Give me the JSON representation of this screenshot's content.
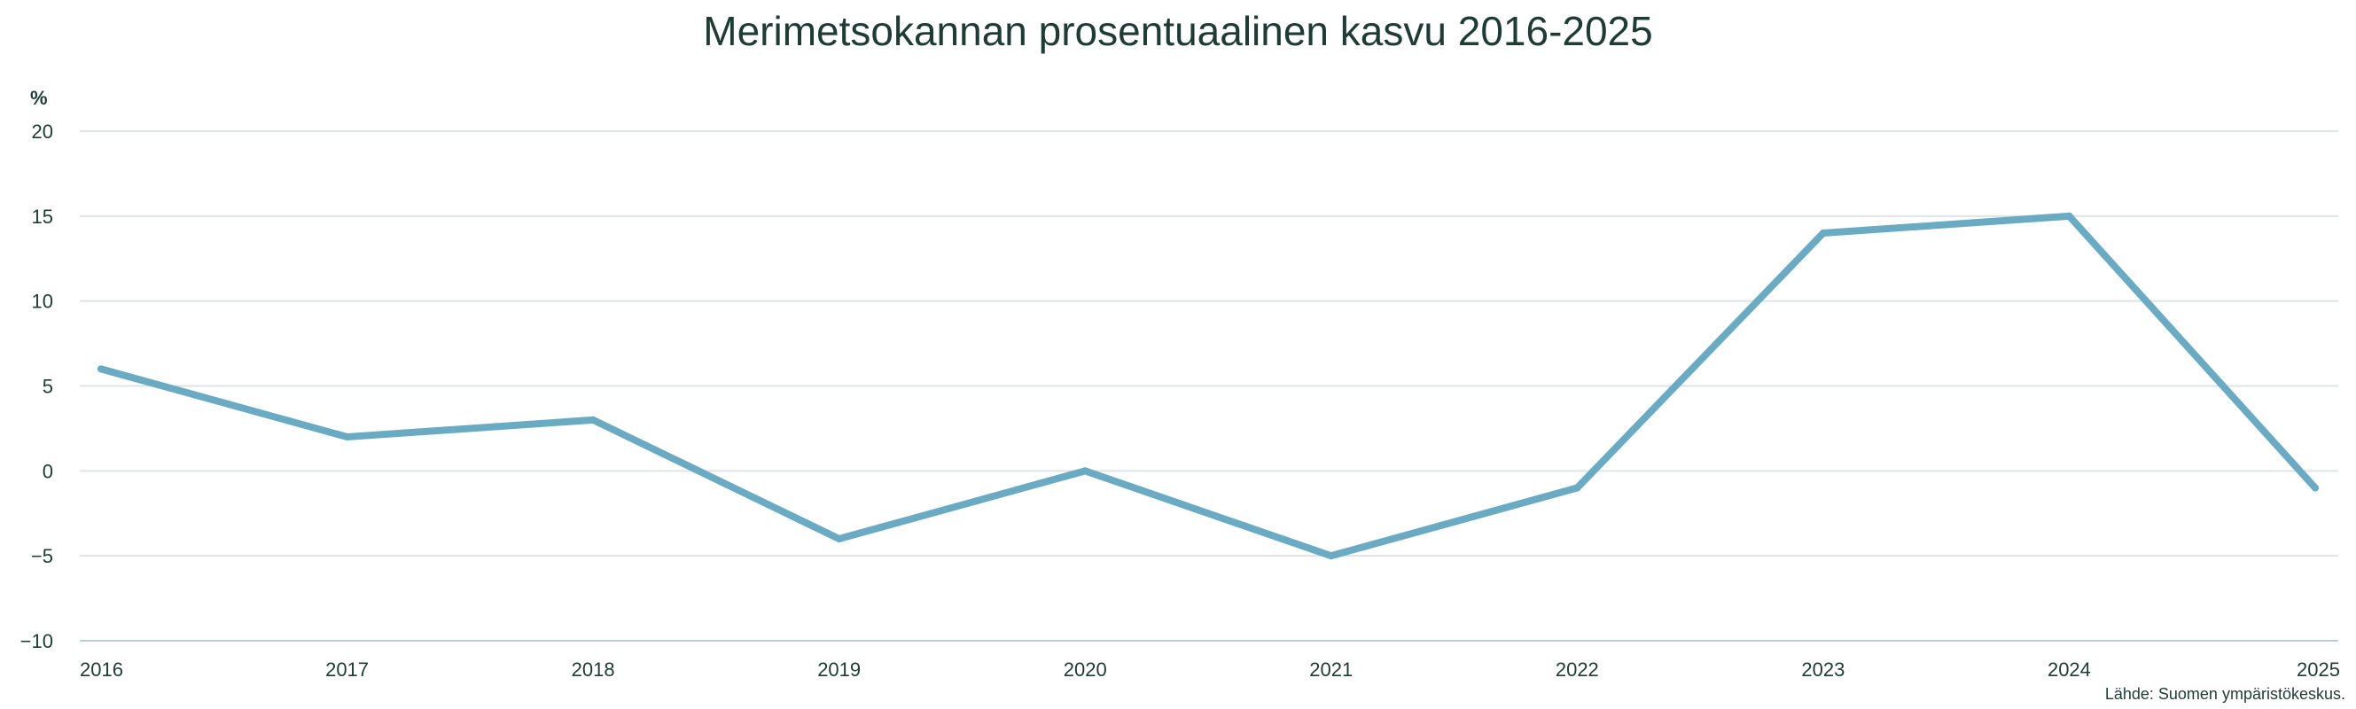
{
  "chart_data": {
    "type": "line",
    "title": "Merimetsokannan prosentuaalinen kasvu 2016-2025",
    "ylabel": "%",
    "xlabel": "",
    "x": [
      "2016",
      "2017",
      "2018",
      "2019",
      "2020",
      "2021",
      "2022",
      "2023",
      "2024",
      "2025"
    ],
    "series": [
      {
        "values": [
          6,
          2,
          3,
          -4,
          0,
          -5,
          -1,
          14,
          15,
          -1
        ],
        "color": "#6aabc3"
      }
    ],
    "ylim": [
      -10,
      20
    ],
    "yticks": [
      "20",
      "15",
      "10",
      "5",
      "0",
      "−5",
      "−10"
    ],
    "grid": true,
    "legend": "none",
    "colors": {
      "line": "#6aabc3",
      "grid": "#dde3e6",
      "axis": "#b9cfd6",
      "text": "#1f3b34"
    },
    "source": "Lähde: Suomen ympäristökeskus."
  }
}
